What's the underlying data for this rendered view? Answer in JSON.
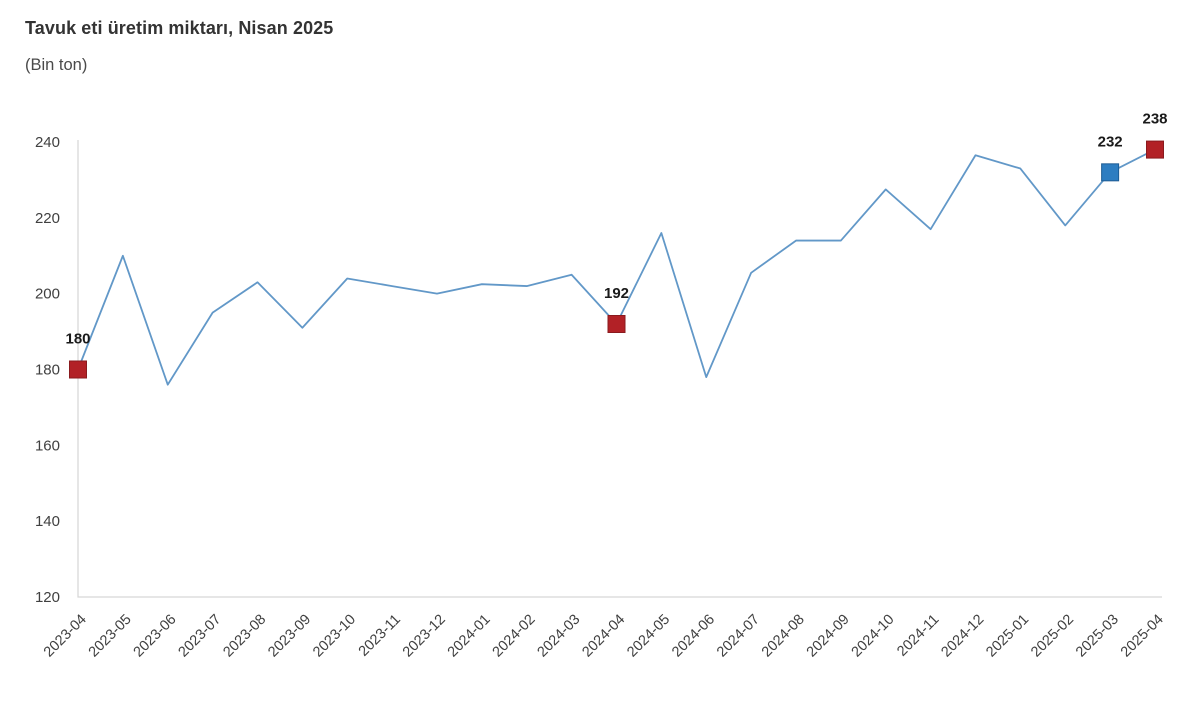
{
  "header": {
    "title": "Tavuk eti üretim miktarı, Nisan 2025",
    "subtitle": "(Bin ton)"
  },
  "chart_data": {
    "type": "line",
    "title": "Tavuk eti üretim miktarı, Nisan 2025",
    "subtitle": "(Bin ton)",
    "ylabel": "Bin ton",
    "xlabel": "",
    "categories": [
      "2023-04",
      "2023-05",
      "2023-06",
      "2023-07",
      "2023-08",
      "2023-09",
      "2023-10",
      "2023-11",
      "2023-12",
      "2024-01",
      "2024-02",
      "2024-03",
      "2024-04",
      "2024-05",
      "2024-06",
      "2024-07",
      "2024-08",
      "2024-09",
      "2024-10",
      "2024-11",
      "2024-12",
      "2025-01",
      "2025-02",
      "2025-03",
      "2025-04"
    ],
    "values": [
      180,
      210,
      176,
      195,
      203,
      191,
      204,
      202,
      200,
      202.5,
      202,
      205,
      192,
      216,
      178,
      205.5,
      214,
      214,
      227.5,
      217,
      236.5,
      233,
      218,
      232,
      238
    ],
    "ylim": [
      120,
      240
    ],
    "yticks": [
      120,
      140,
      160,
      180,
      200,
      220,
      240
    ],
    "grid": false,
    "legend": "none",
    "line_color": "#6298c8",
    "axis_color": "#d6d6d6",
    "tick_label_color": "#404040",
    "value_label_color": "#1a1a1a",
    "markers": [
      {
        "category": "2023-04",
        "index": 0,
        "label": "180",
        "fill": "#b22126",
        "stroke": "#8a1a1e"
      },
      {
        "category": "2024-04",
        "index": 12,
        "label": "192",
        "fill": "#b22126",
        "stroke": "#8a1a1e"
      },
      {
        "category": "2025-03",
        "index": 23,
        "label": "232",
        "fill": "#2d7dc1",
        "stroke": "#1d5c94"
      },
      {
        "category": "2025-04",
        "index": 24,
        "label": "238",
        "fill": "#b22126",
        "stroke": "#8a1a1e"
      }
    ]
  }
}
